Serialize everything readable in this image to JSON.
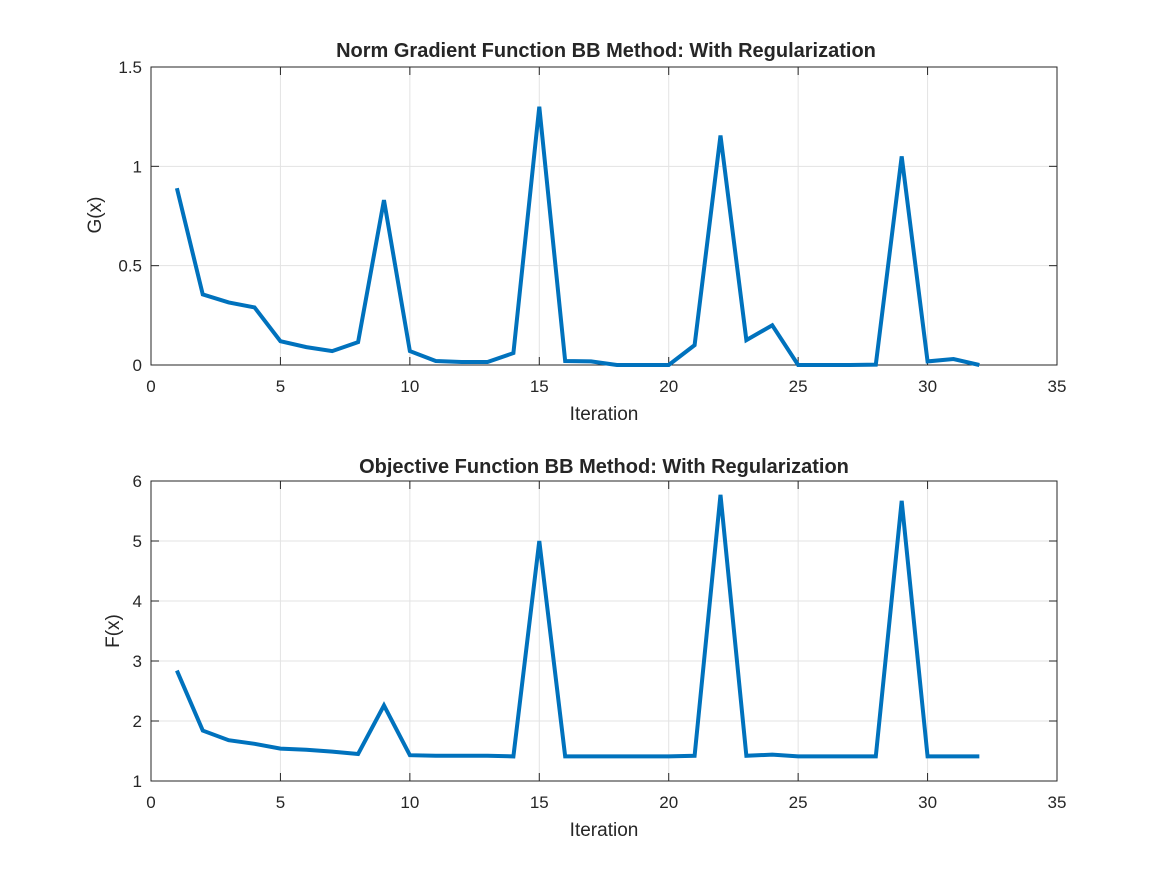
{
  "colors": {
    "line": "#0072BD",
    "axis": "#262626",
    "grid": "#e3e3e3",
    "background": "#ffffff"
  },
  "chart_data": [
    {
      "type": "line",
      "title": "Norm Gradient Function BB Method: With Regularization",
      "xlabel": "Iteration",
      "ylabel": "G(x)",
      "xlim": [
        0,
        35
      ],
      "ylim": [
        0,
        1.5
      ],
      "grid": true,
      "xticks": [
        "0",
        "5",
        "10",
        "15",
        "20",
        "25",
        "30",
        "35"
      ],
      "yticks": [
        "0",
        "0.5",
        "1",
        "1.5"
      ],
      "series": [
        {
          "x": [
            1,
            2,
            3,
            4,
            5,
            6,
            7,
            8,
            9,
            10,
            11,
            12,
            13,
            14,
            15,
            16,
            17,
            18,
            19,
            20,
            21,
            22,
            23,
            24,
            25,
            26,
            27,
            28,
            29,
            30,
            31,
            32
          ],
          "values": [
            0.89,
            0.355,
            0.315,
            0.29,
            0.12,
            0.09,
            0.07,
            0.115,
            0.83,
            0.07,
            0.02,
            0.015,
            0.015,
            0.06,
            1.3,
            0.02,
            0.018,
            0.0,
            0.0,
            0.0,
            0.1,
            1.155,
            0.125,
            0.2,
            0.0,
            0.0,
            0.0,
            0.002,
            1.05,
            0.018,
            0.03,
            0.0
          ]
        }
      ]
    },
    {
      "type": "line",
      "title": "Objective Function BB Method: With Regularization",
      "xlabel": "Iteration",
      "ylabel": "F(x)",
      "xlim": [
        0,
        35
      ],
      "ylim": [
        1,
        6
      ],
      "grid": true,
      "xticks": [
        "0",
        "5",
        "10",
        "15",
        "20",
        "25",
        "30",
        "35"
      ],
      "yticks": [
        "1",
        "2",
        "3",
        "4",
        "5",
        "6"
      ],
      "series": [
        {
          "x": [
            1,
            2,
            3,
            4,
            5,
            6,
            7,
            8,
            9,
            10,
            11,
            12,
            13,
            14,
            15,
            16,
            17,
            18,
            19,
            20,
            21,
            22,
            23,
            24,
            25,
            26,
            27,
            28,
            29,
            30,
            31,
            32
          ],
          "values": [
            2.84,
            1.84,
            1.68,
            1.62,
            1.54,
            1.52,
            1.49,
            1.45,
            2.26,
            1.43,
            1.42,
            1.42,
            1.42,
            1.41,
            5.0,
            1.41,
            1.41,
            1.41,
            1.41,
            1.41,
            1.42,
            5.77,
            1.42,
            1.44,
            1.41,
            1.41,
            1.41,
            1.41,
            5.67,
            1.41,
            1.41,
            1.41
          ]
        }
      ]
    }
  ]
}
